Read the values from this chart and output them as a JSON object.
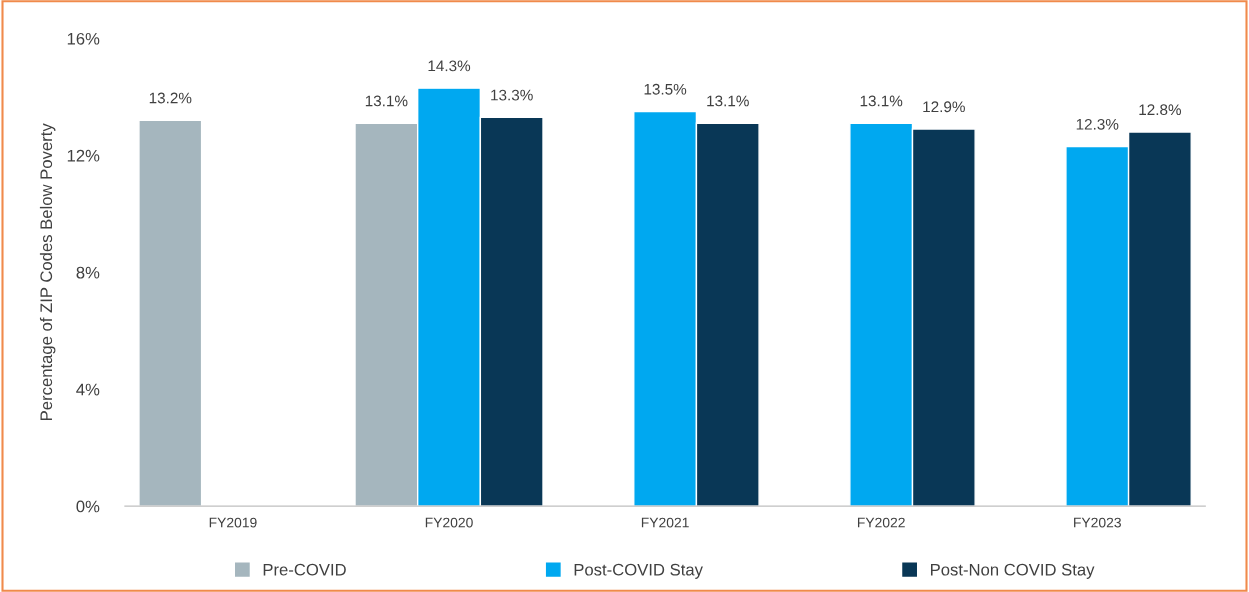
{
  "chart_data": {
    "type": "bar",
    "ylabel": "Percentage of ZIP Codes Below Poverty",
    "categories": [
      "FY2019",
      "FY2020",
      "FY2021",
      "FY2022",
      "FY2023"
    ],
    "series": [
      {
        "name": "Pre-COVID",
        "color": "#a5b6be",
        "values": [
          13.2,
          13.1,
          null,
          null,
          null
        ],
        "value_labels": [
          "13.2%",
          "13.1%",
          null,
          null,
          null
        ]
      },
      {
        "name": "Post-COVID Stay",
        "color": "#00a8f0",
        "values": [
          null,
          14.3,
          13.5,
          13.1,
          12.3
        ],
        "value_labels": [
          null,
          "14.3%",
          "13.5%",
          "13.1%",
          "12.3%"
        ]
      },
      {
        "name": "Post-Non COVID Stay",
        "color": "#093756",
        "values": [
          null,
          13.3,
          13.1,
          12.9,
          12.8
        ],
        "value_labels": [
          null,
          "13.3%",
          "13.1%",
          "12.9%",
          "12.8%"
        ]
      }
    ],
    "ylim": [
      0,
      16
    ],
    "yticks": [
      {
        "value": 0,
        "label": "0%"
      },
      {
        "value": 4,
        "label": "4%"
      },
      {
        "value": 8,
        "label": "8%"
      },
      {
        "value": 12,
        "label": "12%"
      },
      {
        "value": 16,
        "label": "16%"
      }
    ],
    "grid": false,
    "legend": "bottom"
  }
}
